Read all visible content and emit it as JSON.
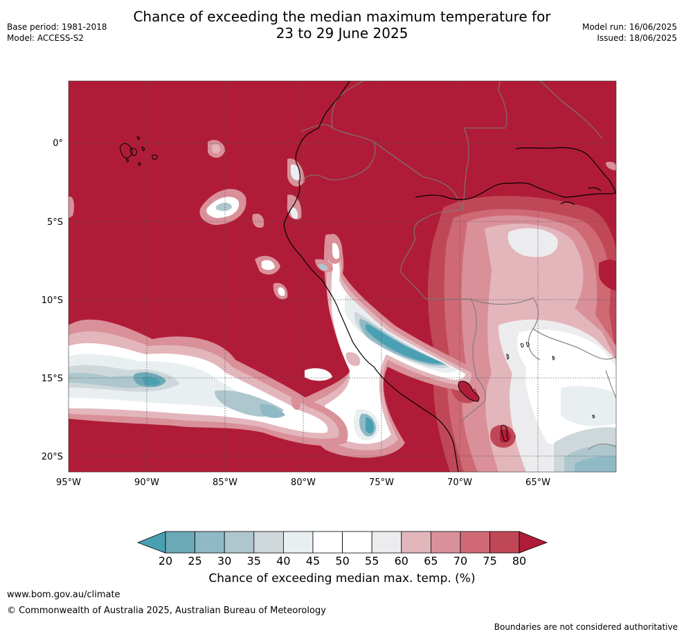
{
  "title": {
    "line1": "Chance of exceeding the median maximum temperature for",
    "line2": "23 to 29 June 2025"
  },
  "meta": {
    "base_period": "Base period: 1981-2018",
    "model": "Model: ACCESS-S2",
    "model_run": "Model run: 16/06/2025",
    "issued": "Issued: 18/06/2025"
  },
  "map": {
    "lat_labels": [
      "0°",
      "5°S",
      "10°S",
      "15°S",
      "20°S"
    ],
    "lon_labels": [
      "95°W",
      "90°W",
      "85°W",
      "80°W",
      "75°W",
      "70°W",
      "65°W"
    ],
    "colors": {
      "c80plus": "#b01c37",
      "c75": "#c04856",
      "c70": "#cf6a75",
      "c65": "#d99099",
      "c60": "#e3b6bc",
      "c55": "#ececee",
      "c50": "#ffffff",
      "c45": "#e9eff1",
      "c40": "#ced8db",
      "c35": "#aec6cd",
      "c30": "#8fb9c5",
      "c25": "#6ca9b7",
      "c20minus": "#4aa0b3"
    }
  },
  "colorbar": {
    "ticks": [
      "20",
      "25",
      "30",
      "35",
      "40",
      "45",
      "50",
      "55",
      "60",
      "65",
      "70",
      "75",
      "80"
    ],
    "title": "Chance of exceeding median max. temp. (%)"
  },
  "footer": {
    "url": "www.bom.gov.au/climate",
    "copyright": "© Commonwealth of Australia 2025, Australian Bureau of Meteorology",
    "disclaimer": "Boundaries are not considered authoritative"
  }
}
